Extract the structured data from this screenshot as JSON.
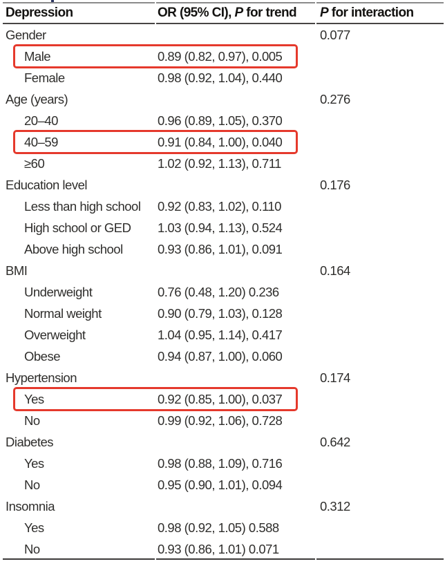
{
  "table": {
    "header": {
      "col1": "Depression",
      "col2_prefix": "OR (95% CI), ",
      "col2_italic": "P",
      "col2_suffix": " for trend",
      "col3_italic": "P",
      "col3_suffix": " for interaction"
    },
    "rows": [
      {
        "label": "Gender",
        "indent": false,
        "or": "",
        "p": "0.077",
        "boxed": false
      },
      {
        "label": "Male",
        "indent": true,
        "or": "0.89 (0.82, 0.97), 0.005",
        "p": "",
        "boxed": true
      },
      {
        "label": "Female",
        "indent": true,
        "or": "0.98 (0.92, 1.04), 0.440",
        "p": "",
        "boxed": false
      },
      {
        "label": "Age (years)",
        "indent": false,
        "or": "",
        "p": "0.276",
        "boxed": false
      },
      {
        "label": "20–40",
        "indent": true,
        "or": "0.96 (0.89, 1.05), 0.370",
        "p": "",
        "boxed": false
      },
      {
        "label": "40–59",
        "indent": true,
        "or": "0.91 (0.84, 1.00), 0.040",
        "p": "",
        "boxed": true
      },
      {
        "label": "≥60",
        "indent": true,
        "or": "1.02 (0.92, 1.13), 0.711",
        "p": "",
        "boxed": false
      },
      {
        "label": "Education level",
        "indent": false,
        "or": "",
        "p": "0.176",
        "boxed": false
      },
      {
        "label": "Less than high school",
        "indent": true,
        "or": "0.92 (0.83, 1.02), 0.110",
        "p": "",
        "boxed": false
      },
      {
        "label": "High school or GED",
        "indent": true,
        "or": "1.03 (0.94, 1.13), 0.524",
        "p": "",
        "boxed": false
      },
      {
        "label": "Above high school",
        "indent": true,
        "or": "0.93 (0.86, 1.01), 0.091",
        "p": "",
        "boxed": false
      },
      {
        "label": "BMI",
        "indent": false,
        "or": "",
        "p": "0.164",
        "boxed": false
      },
      {
        "label": "Underweight",
        "indent": true,
        "or": "0.76 (0.48, 1.20) 0.236",
        "p": "",
        "boxed": false
      },
      {
        "label": "Normal weight",
        "indent": true,
        "or": "0.90 (0.79, 1.03), 0.128",
        "p": "",
        "boxed": false
      },
      {
        "label": "Overweight",
        "indent": true,
        "or": "1.04 (0.95, 1.14), 0.417",
        "p": "",
        "boxed": false
      },
      {
        "label": "Obese",
        "indent": true,
        "or": "0.94 (0.87, 1.00), 0.060",
        "p": "",
        "boxed": false
      },
      {
        "label": "Hypertension",
        "indent": false,
        "or": "",
        "p": "0.174",
        "boxed": false
      },
      {
        "label": "Yes",
        "indent": true,
        "or": "0.92 (0.85, 1.00), 0.037",
        "p": "",
        "boxed": true
      },
      {
        "label": "No",
        "indent": true,
        "or": "0.99 (0.92, 1.06), 0.728",
        "p": "",
        "boxed": false
      },
      {
        "label": "Diabetes",
        "indent": false,
        "or": "",
        "p": "0.642",
        "boxed": false
      },
      {
        "label": "Yes",
        "indent": true,
        "or": "0.98 (0.88, 1.09), 0.716",
        "p": "",
        "boxed": false
      },
      {
        "label": "No",
        "indent": true,
        "or": "0.95 (0.90, 1.01), 0.094",
        "p": "",
        "boxed": false
      },
      {
        "label": "Insomnia",
        "indent": false,
        "or": "",
        "p": "0.312",
        "boxed": false
      },
      {
        "label": "Yes",
        "indent": true,
        "or": "0.98 (0.92, 1.05) 0.588",
        "p": "",
        "boxed": false
      },
      {
        "label": "No",
        "indent": true,
        "or": "0.93 (0.86, 1.01) 0.071",
        "p": "",
        "boxed": false
      }
    ]
  },
  "colors": {
    "highlight_red": "#e5392c",
    "top_rule_gray": "#8a8a8a",
    "dark_rule": "#3c3a39",
    "text": "#2f2e2c"
  }
}
